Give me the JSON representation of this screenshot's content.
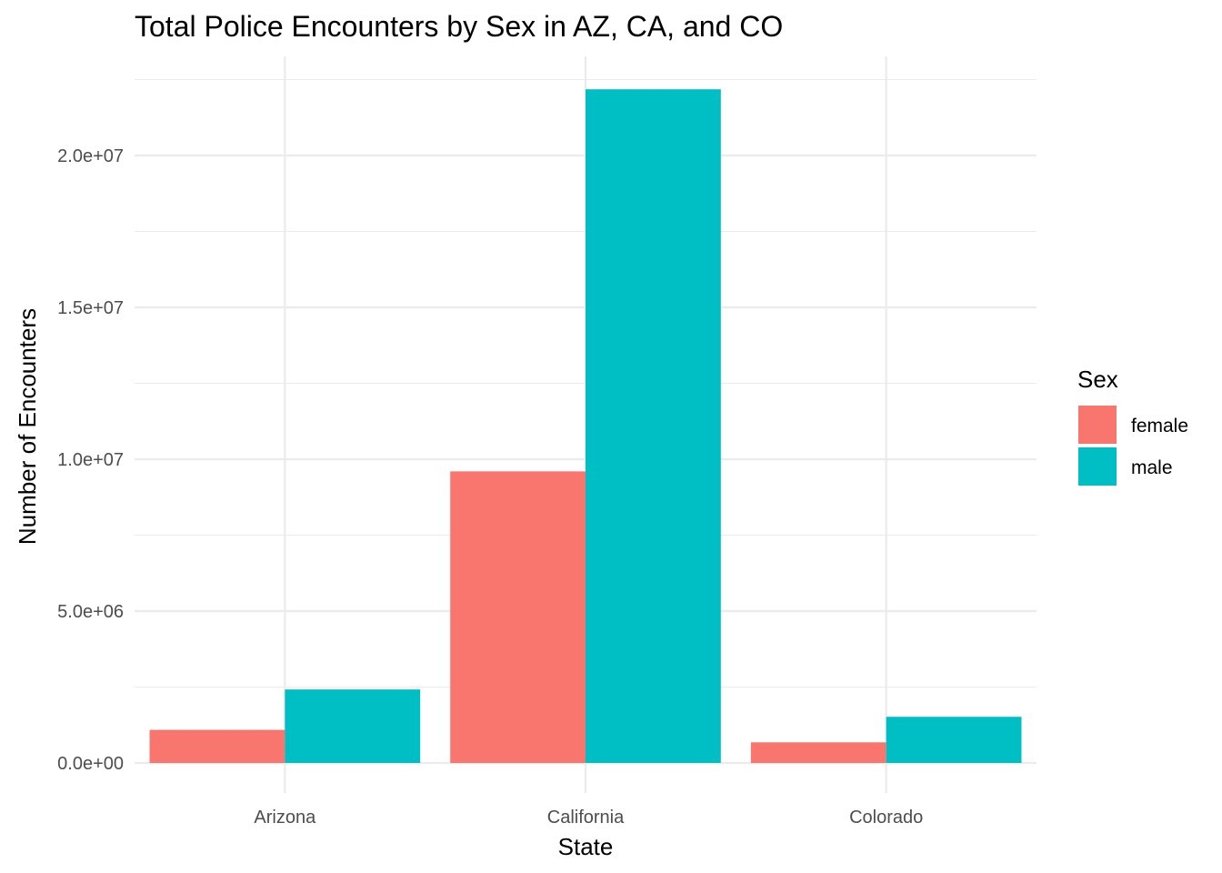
{
  "chart_data": {
    "type": "bar",
    "title": "Total Police Encounters by Sex in AZ, CA, and CO",
    "xlabel": "State",
    "ylabel": "Number of Encounters",
    "categories": [
      "Arizona",
      "California",
      "Colorado"
    ],
    "series": [
      {
        "name": "female",
        "color": "#F8766D",
        "values": [
          1090000,
          9600000,
          680000
        ]
      },
      {
        "name": "male",
        "color": "#00BFC4",
        "values": [
          2420000,
          22180000,
          1520000
        ]
      }
    ],
    "ylim": [
      0,
      22500000
    ],
    "yticks": [
      0,
      5000000,
      10000000,
      15000000,
      20000000
    ],
    "ytick_labels": [
      "0.0e+00",
      "5.0e+06",
      "1.0e+07",
      "1.5e+07",
      "2.0e+07"
    ],
    "legend": {
      "title": "Sex",
      "placement": "right"
    },
    "grid": true
  }
}
